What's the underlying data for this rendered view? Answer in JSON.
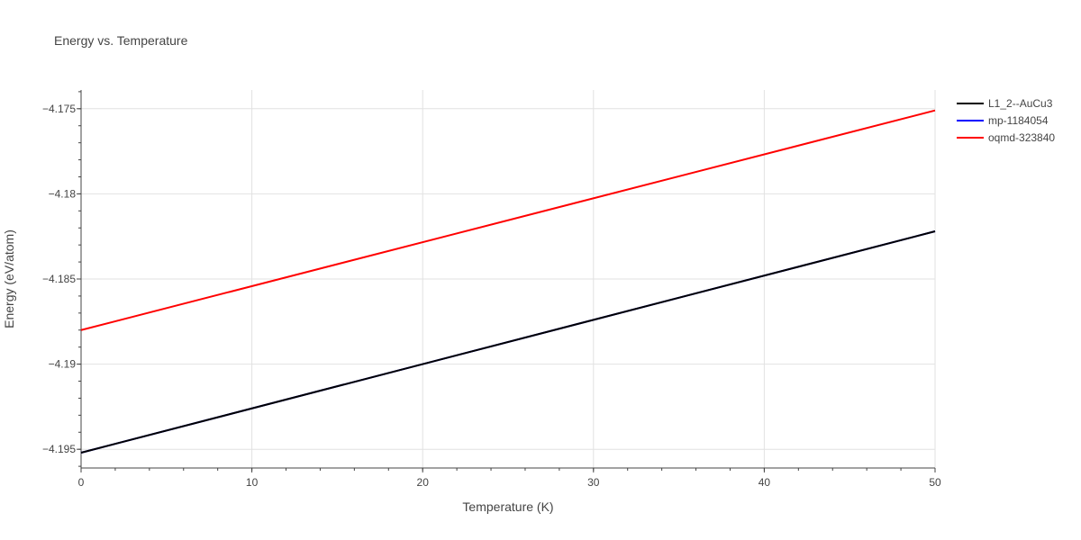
{
  "chart_data": {
    "type": "line",
    "title": "Energy vs. Temperature",
    "xlabel": "Temperature (K)",
    "ylabel": "Energy (eV/atom)",
    "xlim": [
      0,
      50
    ],
    "ylim": [
      -4.1961,
      -4.1739
    ],
    "x_ticks": [
      0,
      10,
      20,
      30,
      40,
      50
    ],
    "x_tick_labels": [
      "0",
      "10",
      "20",
      "30",
      "40",
      "50"
    ],
    "y_ticks": [
      -4.195,
      -4.19,
      -4.185,
      -4.18,
      -4.175
    ],
    "y_tick_labels": [
      "−4.195",
      "−4.19",
      "−4.185",
      "−4.18",
      "−4.175"
    ],
    "grid": true,
    "legend_position": "top-right",
    "series": [
      {
        "name": "L1_2--AuCu3",
        "color": "#000000",
        "x": [
          0,
          50
        ],
        "y": [
          -4.1952,
          -4.1822
        ]
      },
      {
        "name": "mp-1184054",
        "color": "#0000ff",
        "x": [
          0,
          50
        ],
        "y": [
          -4.1952,
          -4.1822
        ]
      },
      {
        "name": "oqmd-323840",
        "color": "#ff0000",
        "x": [
          0,
          50
        ],
        "y": [
          -4.188,
          -4.1751
        ]
      }
    ]
  }
}
